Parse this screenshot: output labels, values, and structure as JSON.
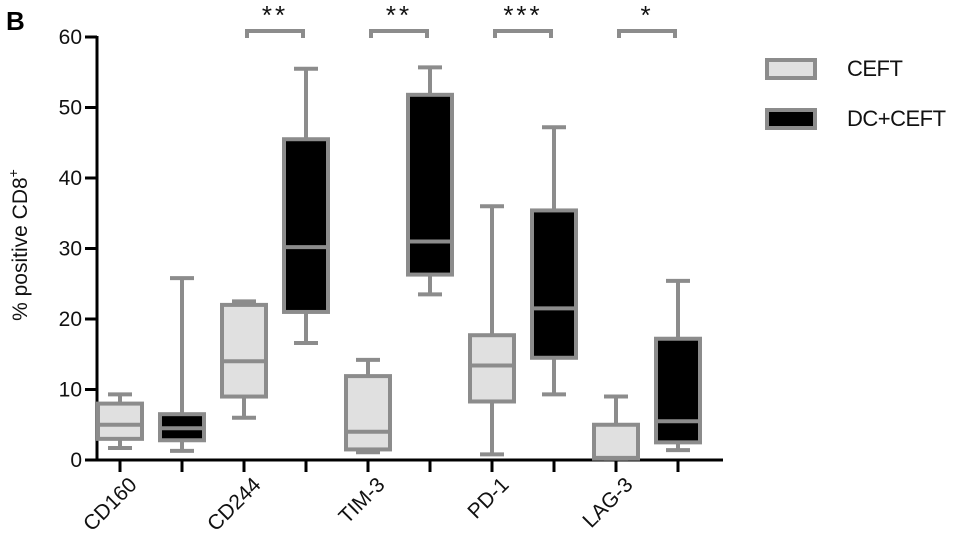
{
  "panel_label": "B",
  "legend": {
    "items": [
      {
        "label": "CEFT",
        "fill": "#e0e0e0",
        "stroke": "#8c8c8c"
      },
      {
        "label": "DC+CEFT",
        "fill": "#000000",
        "stroke": "#8c8c8c"
      }
    ]
  },
  "chart_data": {
    "type": "box",
    "title": "",
    "xlabel": "",
    "ylabel": "% positive CD8+",
    "ylim": [
      0,
      60
    ],
    "yticks": [
      0,
      10,
      20,
      30,
      40,
      50,
      60
    ],
    "grid": false,
    "legend_position": "right",
    "categories": [
      "CD160",
      "CD244",
      "TIM-3",
      "PD-1",
      "LAG-3"
    ],
    "series": [
      {
        "name": "CEFT",
        "fill": "#e0e0e0",
        "stroke": "#8c8c8c",
        "boxes": [
          {
            "min": 1.7,
            "q1": 3.0,
            "median": 5.0,
            "q3": 8.0,
            "max": 9.3
          },
          {
            "min": 6.0,
            "q1": 9.0,
            "median": 14.0,
            "q3": 22.0,
            "max": 22.5
          },
          {
            "min": 1.1,
            "q1": 1.5,
            "median": 4.0,
            "q3": 11.9,
            "max": 14.2
          },
          {
            "min": 0.8,
            "q1": 8.3,
            "median": 13.4,
            "q3": 17.7,
            "max": 36.0
          },
          {
            "min": 0.2,
            "q1": 0.2,
            "median": 0.3,
            "q3": 5.0,
            "max": 9.0
          }
        ]
      },
      {
        "name": "DC+CEFT",
        "fill": "#000000",
        "stroke": "#8c8c8c",
        "boxes": [
          {
            "min": 1.3,
            "q1": 2.8,
            "median": 4.5,
            "q3": 6.5,
            "max": 25.8
          },
          {
            "min": 16.6,
            "q1": 21.0,
            "median": 30.2,
            "q3": 45.5,
            "max": 55.5
          },
          {
            "min": 23.5,
            "q1": 26.3,
            "median": 31.0,
            "q3": 51.8,
            "max": 55.7
          },
          {
            "min": 9.3,
            "q1": 14.5,
            "median": 21.5,
            "q3": 35.4,
            "max": 47.2
          },
          {
            "min": 1.4,
            "q1": 2.5,
            "median": 5.5,
            "q3": 17.2,
            "max": 25.4
          }
        ]
      }
    ],
    "annotations": [
      {
        "category": "CD244",
        "text": "**"
      },
      {
        "category": "TIM-3",
        "text": "**"
      },
      {
        "category": "PD-1",
        "text": "***"
      },
      {
        "category": "LAG-3",
        "text": "*"
      }
    ]
  }
}
